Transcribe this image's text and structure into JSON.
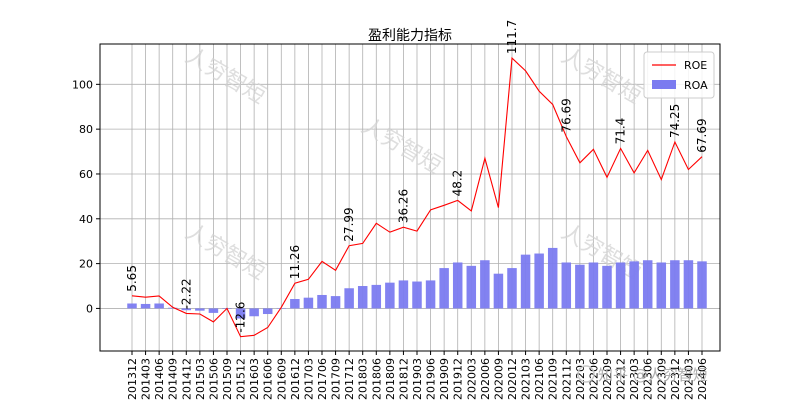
{
  "chart_data": {
    "type": "bar+line",
    "title": "盈利能力指标",
    "xlabel": "",
    "ylabel": "",
    "ylim": [
      -19,
      118
    ],
    "yticks": [
      0,
      20,
      40,
      60,
      80,
      100
    ],
    "grid": true,
    "legend_position": "top-right",
    "categories": [
      "201312",
      "201403",
      "201406",
      "201409",
      "201412",
      "201503",
      "201506",
      "201509",
      "201512",
      "201603",
      "201606",
      "201609",
      "201612",
      "201703",
      "201706",
      "201709",
      "201712",
      "201803",
      "201806",
      "201809",
      "201812",
      "201903",
      "201906",
      "201909",
      "201912",
      "202003",
      "202006",
      "202009",
      "202012",
      "202103",
      "202106",
      "202109",
      "202112",
      "202203",
      "202206",
      "202209",
      "202212",
      "202303",
      "202306",
      "202309",
      "202312",
      "202403",
      "202406"
    ],
    "series": [
      {
        "name": "ROE",
        "type": "line",
        "color": "#ff0000",
        "values": [
          5.65,
          5.0,
          5.6,
          0.5,
          -2.22,
          -2.5,
          -6.0,
          0.0,
          -12.6,
          -12.0,
          -8.5,
          0.5,
          11.26,
          13.0,
          21.0,
          17.0,
          27.99,
          29.0,
          38.0,
          34.0,
          36.26,
          34.5,
          44.0,
          46.0,
          48.2,
          43.5,
          67.0,
          45.0,
          111.7,
          106.0,
          97.0,
          91.0,
          76.69,
          65.0,
          71.0,
          58.5,
          71.4,
          60.5,
          70.5,
          57.5,
          74.25,
          62.0,
          67.69
        ]
      },
      {
        "name": "ROA",
        "type": "bar",
        "color": "#7b7bf0",
        "values": [
          2.2,
          2.0,
          2.2,
          0.3,
          -0.8,
          -1.0,
          -2.0,
          0.0,
          -4.5,
          -3.5,
          -2.5,
          0.2,
          4.2,
          4.8,
          6.0,
          5.5,
          9.0,
          10.0,
          10.5,
          11.5,
          12.5,
          12.0,
          12.5,
          18.0,
          20.5,
          19.0,
          21.5,
          15.5,
          18.0,
          24.0,
          24.5,
          27.0,
          20.5,
          19.5,
          20.5,
          19.0,
          20.5,
          21.0,
          21.5,
          20.5,
          21.5,
          21.5,
          21.0
        ]
      }
    ],
    "data_labels": [
      {
        "index": 0,
        "text": "5.65"
      },
      {
        "index": 4,
        "text": "-2.22"
      },
      {
        "index": 8,
        "text": "-12.6"
      },
      {
        "index": 12,
        "text": "11.26"
      },
      {
        "index": 16,
        "text": "27.99"
      },
      {
        "index": 20,
        "text": "36.26"
      },
      {
        "index": 24,
        "text": "48.2"
      },
      {
        "index": 28,
        "text": "111.7"
      },
      {
        "index": 32,
        "text": "76.69"
      },
      {
        "index": 36,
        "text": "71.4"
      },
      {
        "index": 40,
        "text": "74.25"
      },
      {
        "index": 42,
        "text": "67.69"
      }
    ]
  },
  "watermarks": [
    "人穷智短",
    "人穷智短",
    "人穷智短",
    "人穷智短",
    "人穷智短"
  ],
  "corner_watermark": {
    "icon": "zhihu-logo-icon",
    "text": "知乎 @人穷智短"
  }
}
